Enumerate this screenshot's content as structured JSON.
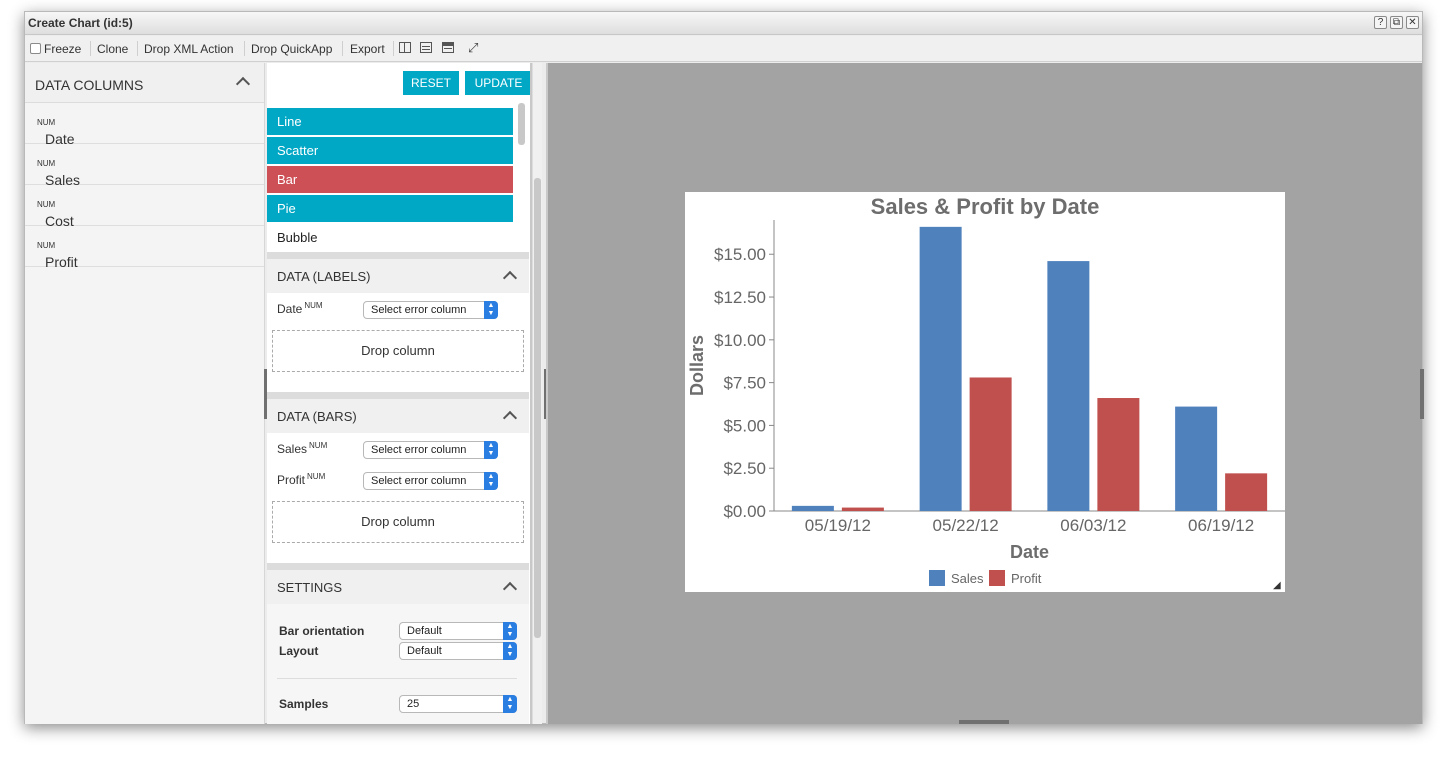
{
  "window": {
    "title": "Create Chart (id:5)",
    "buttons": [
      "?",
      "⧉",
      "✕"
    ]
  },
  "toolbar": {
    "freeze": "Freeze",
    "clone": "Clone",
    "drop_xml": "Drop XML Action",
    "drop_quickapp": "Drop QuickApp",
    "export": "Export"
  },
  "data_columns": {
    "header": "DATA COLUMNS",
    "items": [
      {
        "name": "Date",
        "type": "NUM"
      },
      {
        "name": "Sales",
        "type": "NUM"
      },
      {
        "name": "Cost",
        "type": "NUM"
      },
      {
        "name": "Profit",
        "type": "NUM"
      }
    ]
  },
  "actions": {
    "reset": "RESET",
    "update": "UPDATE"
  },
  "chart_types": [
    {
      "label": "Line",
      "state": "active"
    },
    {
      "label": "Scatter",
      "state": "active"
    },
    {
      "label": "Bar",
      "state": "selected"
    },
    {
      "label": "Pie",
      "state": "active"
    },
    {
      "label": "Bubble",
      "state": "inactive"
    }
  ],
  "colors": {
    "accent": "#00a8c6",
    "selected": "#cd5057",
    "sales": "#4f81bd",
    "profit": "#c0504d",
    "canvas": "#a3a3a3"
  },
  "labels_section": {
    "header": "DATA (LABELS)",
    "fields": [
      {
        "name": "Date",
        "type": "NUM",
        "select": "Select error column"
      }
    ],
    "drop": "Drop column"
  },
  "bars_section": {
    "header": "DATA (BARS)",
    "fields": [
      {
        "name": "Sales",
        "type": "NUM",
        "select": "Select error column"
      },
      {
        "name": "Profit",
        "type": "NUM",
        "select": "Select error column"
      }
    ],
    "drop": "Drop column"
  },
  "settings_section": {
    "header": "SETTINGS",
    "bar_orientation_label": "Bar orientation",
    "bar_orientation": "Default",
    "layout_label": "Layout",
    "layout": "Default",
    "samples_label": "Samples",
    "samples": "25"
  },
  "chart_data": {
    "type": "bar",
    "title": "Sales & Profit by Date",
    "xlabel": "Date",
    "ylabel": "Dollars",
    "categories": [
      "05/19/12",
      "05/22/12",
      "06/03/12",
      "06/19/12"
    ],
    "series": [
      {
        "name": "Sales",
        "values": [
          0.3,
          16.6,
          14.6,
          6.1
        ]
      },
      {
        "name": "Profit",
        "values": [
          0.2,
          7.8,
          6.6,
          2.2
        ]
      }
    ],
    "ylim": [
      0,
      17
    ],
    "yticks": [
      0,
      2.5,
      5,
      7.5,
      10,
      12.5,
      15
    ],
    "ytick_labels": [
      "$0.00",
      "$2.50",
      "$5.00",
      "$7.50",
      "$10.00",
      "$12.50",
      "$15.00"
    ],
    "legend": "bottom-center"
  }
}
